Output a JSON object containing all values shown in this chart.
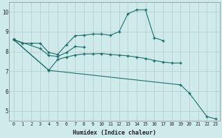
{
  "xlabel": "Humidex (Indice chaleur)",
  "bg_color": "#ceeaea",
  "grid_color": "#b8c8c8",
  "line_color": "#1a6e6e",
  "xlim": [
    -0.5,
    23.5
  ],
  "ylim": [
    4.5,
    10.5
  ],
  "xticks": [
    0,
    1,
    2,
    3,
    4,
    5,
    6,
    7,
    8,
    9,
    10,
    11,
    12,
    13,
    14,
    15,
    16,
    17,
    18,
    19,
    20,
    21,
    22,
    23
  ],
  "yticks": [
    5,
    6,
    7,
    8,
    9,
    10
  ],
  "line1_x": [
    0,
    1,
    2,
    3,
    4,
    5,
    6,
    7,
    8,
    9,
    10,
    11,
    12,
    13,
    14,
    15,
    16,
    17
  ],
  "line1_y": [
    8.6,
    8.42,
    8.42,
    8.42,
    7.95,
    7.85,
    8.35,
    8.8,
    8.82,
    8.88,
    8.88,
    8.82,
    9.0,
    9.9,
    10.1,
    10.1,
    8.7,
    8.55
  ],
  "line2_x": [
    0,
    3,
    4,
    5,
    6,
    7,
    8
  ],
  "line2_y": [
    8.6,
    8.15,
    7.8,
    7.75,
    7.95,
    8.25,
    8.22
  ],
  "line3_x": [
    0,
    4,
    5,
    6,
    7,
    8,
    9,
    10,
    11,
    12,
    13,
    14,
    15,
    16,
    17,
    18,
    19
  ],
  "line3_y": [
    8.6,
    7.05,
    7.6,
    7.72,
    7.82,
    7.88,
    7.88,
    7.9,
    7.85,
    7.82,
    7.78,
    7.72,
    7.65,
    7.55,
    7.47,
    7.42,
    7.42
  ],
  "line4_x": [
    0,
    4,
    19,
    20,
    22,
    23
  ],
  "line4_y": [
    8.6,
    7.05,
    6.32,
    5.9,
    4.72,
    4.6
  ]
}
